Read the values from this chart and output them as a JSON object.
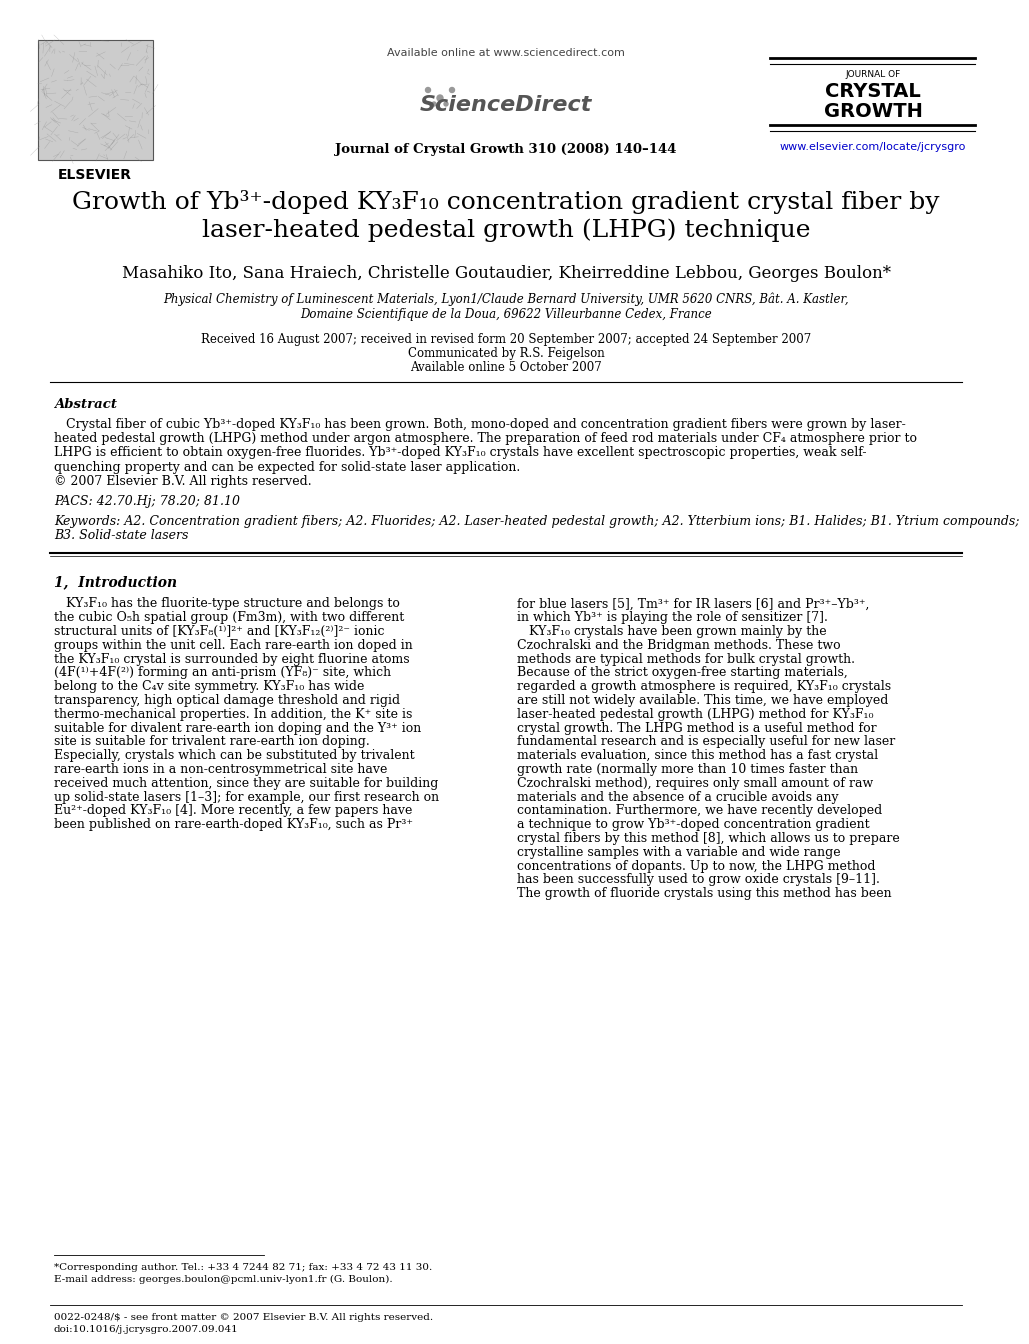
{
  "title_line1": "Growth of Yb³⁺-doped KY₃F₁₀ concentration gradient crystal fiber by",
  "title_line2": "laser-heated pedestal growth (LHPG) technique",
  "authors": "Masahiko Ito, Sana Hraiech, Christelle Goutaudier, Kheirreddine Lebbou, Georges Boulon*",
  "affiliation1": "Physical Chemistry of Luminescent Materials, Lyon1/Claude Bernard University, UMR 5620 CNRS, Bât. A. Kastler,",
  "affiliation2": "Domaine Scientifique de la Doua, 69622 Villeurbanne Cedex, France",
  "received": "Received 16 August 2007; received in revised form 20 September 2007; accepted 24 September 2007",
  "communicated": "Communicated by R.S. Feigelson",
  "available": "Available online 5 October 2007",
  "journal_header": "Journal of Crystal Growth 310 (2008) 140–144",
  "available_online": "Available online at www.sciencedirect.com",
  "journal_name_small": "JOURNAL OF",
  "journal_name_big1": "CRYSTAL",
  "journal_name_big2": "GROWTH",
  "website": "www.elsevier.com/locate/jcrysgro",
  "elsevier_text": "ELSEVIER",
  "abstract_title": "Abstract",
  "pacs": "PACS: 42.70.Hj; 78.20; 81.10",
  "keywords_label": "Keywords:",
  "keywords_body": " A2. Concentration gradient fibers; A2. Fluorides; A2. Laser-heated pedestal growth; A2. Ytterbium ions; B1. Halides; B1. Ytrium compounds; B3. Solid-state lasers",
  "section1_title": "1,  Introduction",
  "footnote1": "*Corresponding author. Tel.: +33 4 7244 82 71; fax: +33 4 72 43 11 30.",
  "footnote2": "E-mail address: georges.boulon@pcml.univ-lyon1.fr (G. Boulon).",
  "bottom_line1": "0022-0248/$ - see front matter © 2007 Elsevier B.V. All rights reserved.",
  "bottom_line2": "doi:10.1016/j.jcrysgro.2007.09.041",
  "bg_color": "#ffffff",
  "text_color": "#000000",
  "link_color": "#0000cc",
  "abstract_lines": [
    "   Crystal fiber of cubic Yb³⁺-doped KY₃F₁₀ has been grown. Both, mono-doped and concentration gradient fibers were grown by laser-",
    "heated pedestal growth (LHPG) method under argon atmosphere. The preparation of feed rod materials under CF₄ atmosphere prior to",
    "LHPG is efficient to obtain oxygen-free fluorides. Yb³⁺-doped KY₃F₁₀ crystals have excellent spectroscopic properties, weak self-",
    "quenching property and can be expected for solid-state laser application.",
    "© 2007 Elsevier B.V. All rights reserved."
  ],
  "keyword_lines": [
    "Keywords: A2. Concentration gradient fibers; A2. Fluorides; A2. Laser-heated pedestal growth; A2. Ytterbium ions; B1. Halides; B1. Ytrium compounds;",
    "B3. Solid-state lasers"
  ],
  "col1_lines": [
    "   KY₃F₁₀ has the fluorite-type structure and belongs to",
    "the cubic O₅h spatial group (Fm3m), with two different",
    "structural units of [KY₃F₈(¹⁾]²⁺ and [KY₃F₁₂(²⁾]²⁻ ionic",
    "groups within the unit cell. Each rare-earth ion doped in",
    "the KY₃F₁₀ crystal is surrounded by eight fluorine atoms",
    "(4F(¹⁾+4F(²⁾) forming an anti-prism (YF₈)⁻ site, which",
    "belong to the C₄v site symmetry. KY₃F₁₀ has wide",
    "transparency, high optical damage threshold and rigid",
    "thermo-mechanical properties. In addition, the K⁺ site is",
    "suitable for divalent rare-earth ion doping and the Y³⁺ ion",
    "site is suitable for trivalent rare-earth ion doping.",
    "Especially, crystals which can be substituted by trivalent",
    "rare-earth ions in a non-centrosymmetrical site have",
    "received much attention, since they are suitable for building",
    "up solid-state lasers [1–3]; for example, our first research on",
    "Eu²⁺-doped KY₃F₁₀ [4]. More recently, a few papers have",
    "been published on rare-earth-doped KY₃F₁₀, such as Pr³⁺"
  ],
  "col2_lines": [
    "for blue lasers [5], Tm³⁺ for IR lasers [6] and Pr³⁺–Yb³⁺,",
    "in which Yb³⁺ is playing the role of sensitizer [7].",
    "   KY₃F₁₀ crystals have been grown mainly by the",
    "Czochralski and the Bridgman methods. These two",
    "methods are typical methods for bulk crystal growth.",
    "Because of the strict oxygen-free starting materials,",
    "regarded a growth atmosphere is required, KY₃F₁₀ crystals",
    "are still not widely available. This time, we have employed",
    "laser-heated pedestal growth (LHPG) method for KY₃F₁₀",
    "crystal growth. The LHPG method is a useful method for",
    "fundamental research and is especially useful for new laser",
    "materials evaluation, since this method has a fast crystal",
    "growth rate (normally more than 10 times faster than",
    "Czochralski method), requires only small amount of raw",
    "materials and the absence of a crucible avoids any",
    "contamination. Furthermore, we have recently developed",
    "a technique to grow Yb³⁺-doped concentration gradient",
    "crystal fibers by this method [8], which allows us to prepare",
    "crystalline samples with a variable and wide range",
    "concentrations of dopants. Up to now, the LHPG method",
    "has been successfully used to grow oxide crystals [9–11].",
    "The growth of fluoride crystals using this method has been"
  ]
}
